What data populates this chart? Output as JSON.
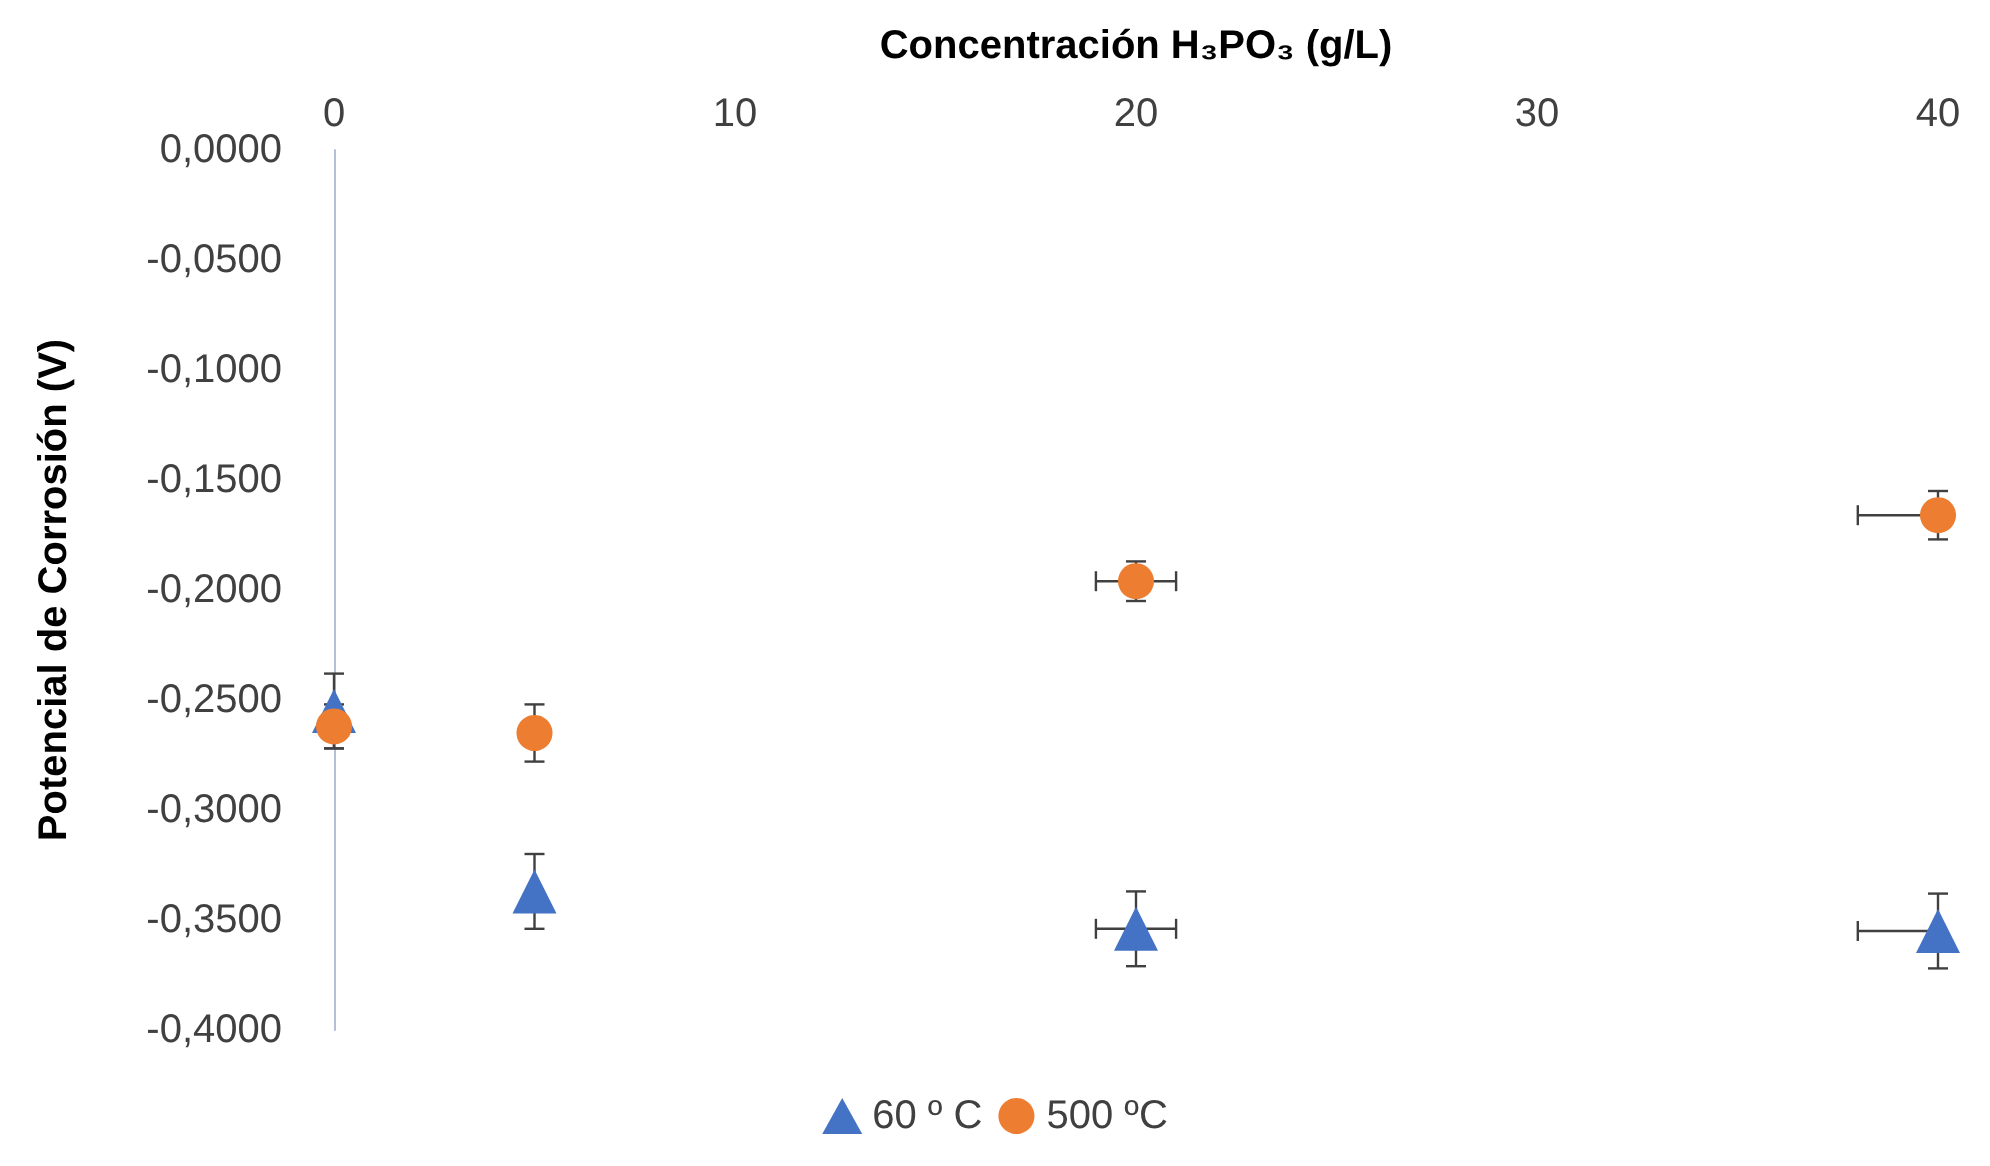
{
  "chart_data": {
    "type": "scatter",
    "xlabel": "Concentración H₃PO₃ (g/L)",
    "ylabel": "Potencial de Corrosión (V)",
    "x": [
      0,
      5,
      20,
      40
    ],
    "xlim": [
      0,
      40
    ],
    "xticks": [
      0,
      10,
      20,
      30,
      40
    ],
    "ylim": [
      -0.4,
      0
    ],
    "yticks": [
      {
        "value": 0,
        "label": "0,0000"
      },
      {
        "value": -0.05,
        "label": "-0,0500"
      },
      {
        "value": -0.1,
        "label": "-0,1000"
      },
      {
        "value": -0.15,
        "label": "-0,1500"
      },
      {
        "value": -0.2,
        "label": "-0,2000"
      },
      {
        "value": -0.25,
        "label": "-0,2500"
      },
      {
        "value": -0.3,
        "label": "-0,3000"
      },
      {
        "value": -0.35,
        "label": "-0,3500"
      },
      {
        "value": -0.4,
        "label": "-0,4000"
      }
    ],
    "grid": false,
    "legend": "bottom",
    "series": [
      {
        "name": "60 º C",
        "color": "#4472c4",
        "marker": "triangle",
        "values": [
          -0.255,
          -0.337,
          -0.354,
          -0.355
        ],
        "errors": [
          0.017,
          0.017,
          0.017,
          0.017
        ],
        "xerrors": [
          null,
          null,
          1,
          [
            38,
            40
          ]
        ]
      },
      {
        "name": "500 ºC",
        "color": "#ed7d31",
        "marker": "circle",
        "values": [
          -0.262,
          -0.265,
          -0.196,
          -0.166
        ],
        "errors": [
          0.01,
          0.013,
          0.009,
          0.011
        ],
        "xerrors": [
          null,
          null,
          1,
          [
            38,
            40
          ]
        ]
      }
    ]
  }
}
